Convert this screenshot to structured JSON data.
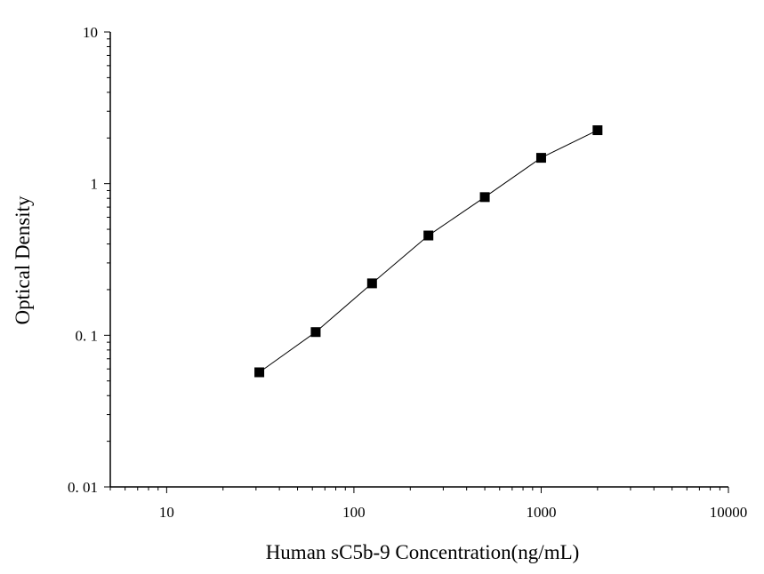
{
  "chart_data": {
    "type": "scatter",
    "title": "",
    "xlabel": "Human sC5b-9 Concentration(ng/mL)",
    "ylabel": "Optical Density",
    "x_scale": "log",
    "y_scale": "log",
    "xlim": [
      5,
      10000
    ],
    "ylim": [
      0.01,
      10
    ],
    "x_ticks": [
      {
        "value": 10,
        "label": "10"
      },
      {
        "value": 100,
        "label": "100"
      },
      {
        "value": 1000,
        "label": "1000"
      },
      {
        "value": 10000,
        "label": "10000"
      }
    ],
    "y_ticks": [
      {
        "value": 0.01,
        "label": "0. 01"
      },
      {
        "value": 0.1,
        "label": "0. 1"
      },
      {
        "value": 1,
        "label": "1"
      },
      {
        "value": 10,
        "label": "10"
      }
    ],
    "grid": false,
    "legend": "none",
    "marker": "square",
    "line_connected": true,
    "color": "#000000",
    "series": [
      {
        "x": [
          31.25,
          62.5,
          125,
          250,
          500,
          1000,
          2000
        ],
        "y": [
          0.057,
          0.105,
          0.22,
          0.455,
          0.815,
          1.48,
          2.25
        ]
      }
    ]
  }
}
